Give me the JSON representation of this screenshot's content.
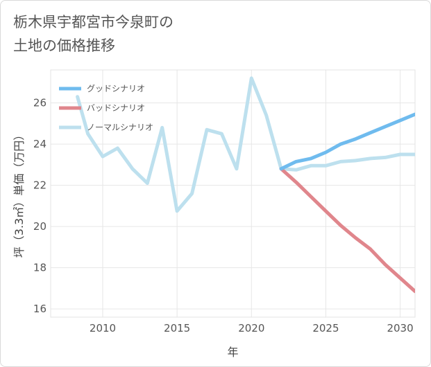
{
  "title_line1": "栃木県宇都宮市今泉町の",
  "title_line2": "土地の価格推移",
  "chart_data": {
    "type": "line",
    "xlabel": "年",
    "ylabel": "坪（3.3㎡）単価（万円）",
    "xlim": [
      2006.5,
      2031
    ],
    "ylim": [
      15.6,
      27.6
    ],
    "xticks": [
      2010,
      2015,
      2020,
      2025,
      2030
    ],
    "yticks": [
      16,
      18,
      20,
      22,
      24,
      26
    ],
    "grid": true,
    "legend_position": "top-left",
    "series": [
      {
        "name": "グッドシナリオ",
        "color": "#6fbbee",
        "x": [
          2022,
          2023,
          2024,
          2025,
          2026,
          2027,
          2028,
          2029,
          2030,
          2031
        ],
        "y": [
          22.8,
          23.15,
          23.3,
          23.6,
          24.0,
          24.25,
          24.55,
          24.85,
          25.15,
          25.45
        ]
      },
      {
        "name": "バッドシナリオ",
        "color": "#e0868c",
        "x": [
          2022,
          2023,
          2024,
          2025,
          2026,
          2027,
          2028,
          2029,
          2030,
          2031
        ],
        "y": [
          22.8,
          22.15,
          21.45,
          20.75,
          20.05,
          19.45,
          18.9,
          18.15,
          17.5,
          16.85
        ]
      },
      {
        "name": "ノーマルシナリオ",
        "color": "#bde0ee",
        "x": [
          2008.3,
          2009,
          2010,
          2011,
          2012,
          2013,
          2014,
          2015,
          2016,
          2017,
          2018,
          2019,
          2020,
          2021,
          2022,
          2023,
          2024,
          2025,
          2026,
          2027,
          2028,
          2029,
          2030,
          2031
        ],
        "y": [
          26.3,
          24.5,
          23.4,
          23.8,
          22.8,
          22.1,
          24.8,
          20.75,
          21.6,
          24.7,
          24.5,
          22.8,
          27.2,
          25.4,
          22.8,
          22.75,
          22.95,
          22.95,
          23.15,
          23.2,
          23.3,
          23.35,
          23.5,
          23.5
        ]
      }
    ]
  }
}
